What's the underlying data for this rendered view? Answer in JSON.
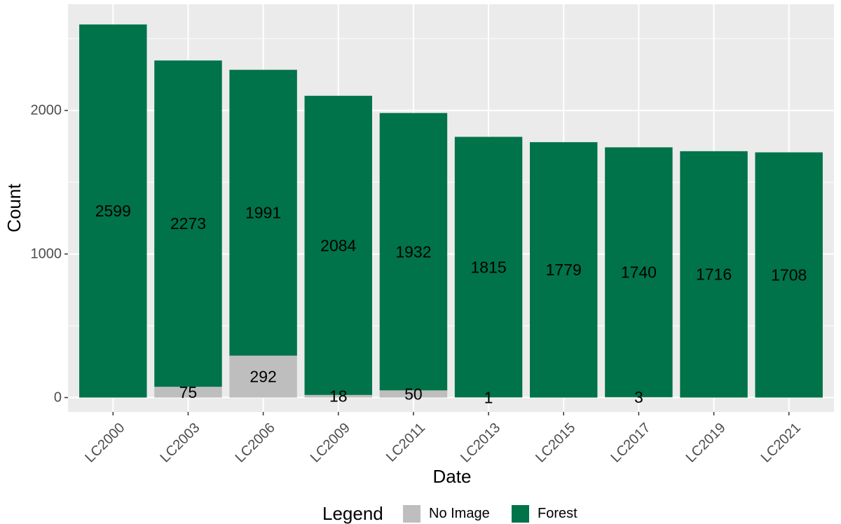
{
  "chart_data": {
    "type": "bar",
    "stacked": true,
    "title": "",
    "xlabel": "Date",
    "ylabel": "Count",
    "ylim": [
      -100,
      2740
    ],
    "yticks": [
      0,
      1000,
      2000
    ],
    "categories": [
      "LC2000",
      "LC2003",
      "LC2006",
      "LC2009",
      "LC2011",
      "LC2013",
      "LC2015",
      "LC2017",
      "LC2019",
      "LC2021"
    ],
    "series": [
      {
        "name": "No Image",
        "color": "#bebebe",
        "values": [
          0,
          75,
          292,
          18,
          50,
          1,
          0,
          3,
          0,
          0
        ],
        "labels": [
          "",
          "75",
          "292",
          "18",
          "50",
          "1",
          "",
          "3",
          "",
          ""
        ]
      },
      {
        "name": "Forest",
        "color": "#00734a",
        "values": [
          2599,
          2273,
          1991,
          2084,
          1932,
          1815,
          1779,
          1740,
          1716,
          1708
        ],
        "labels": [
          "2599",
          "2273",
          "1991",
          "2084",
          "1932",
          "1815",
          "1779",
          "1740",
          "1716",
          "1708"
        ]
      }
    ],
    "legend": {
      "title": "Legend",
      "position": "bottom"
    },
    "grid": true,
    "panel_background": "#ebebeb",
    "grid_color": "#ffffff"
  }
}
